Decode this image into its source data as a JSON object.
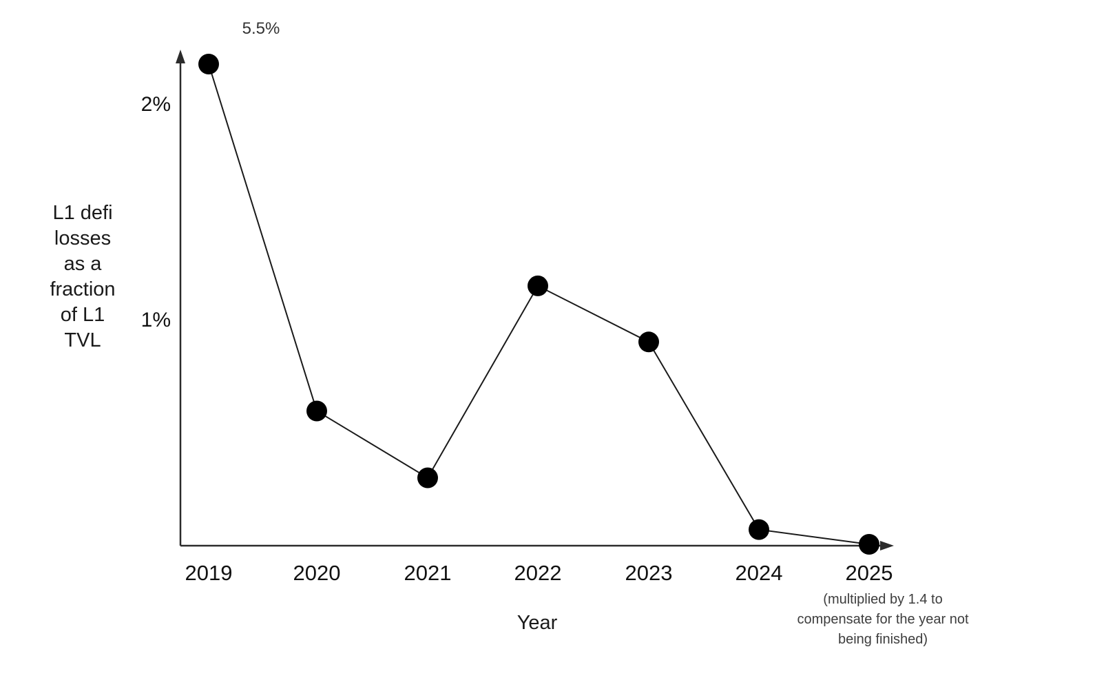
{
  "chart_data": {
    "type": "line",
    "title": "",
    "xlabel": "Year",
    "ylabel": "L1 defi losses as a fraction of L1 TVL",
    "ylabel_lines": [
      "L1 defi",
      "losses",
      "as a",
      "fraction",
      "of L1",
      "TVL"
    ],
    "x": [
      2019,
      2020,
      2021,
      2022,
      2023,
      2024,
      2025
    ],
    "x_tick_labels": [
      "2019",
      "2020",
      "2021",
      "2022",
      "2023",
      "2024",
      "2025"
    ],
    "values_percent": [
      5.5,
      0.58,
      0.27,
      1.16,
      0.9,
      0.03,
      0.0
    ],
    "unit": "%",
    "y_tick_labels": [
      "2%",
      "1%"
    ],
    "y_tick_percents": [
      2,
      1
    ],
    "ylim_shown": [
      0,
      2.2
    ],
    "marker": "filled-circle",
    "grid": false,
    "legend": false,
    "annotations": [
      {
        "target_year": 2019,
        "text": "5.5%",
        "meaning": "true value of 2019 point, which is drawn clipped at the top of the axis"
      }
    ],
    "footnote_lines": [
      "(multiplied by 1.4 to",
      "compensate for the year not",
      "being finished)"
    ],
    "footnote_target_year": 2025,
    "colors": {
      "line": "#1a1a1a",
      "marker": "#000000",
      "axis": "#2b2b2b",
      "text": "#1a1a1a",
      "muted_text": "#3d3d3d",
      "background": "#ffffff"
    }
  }
}
